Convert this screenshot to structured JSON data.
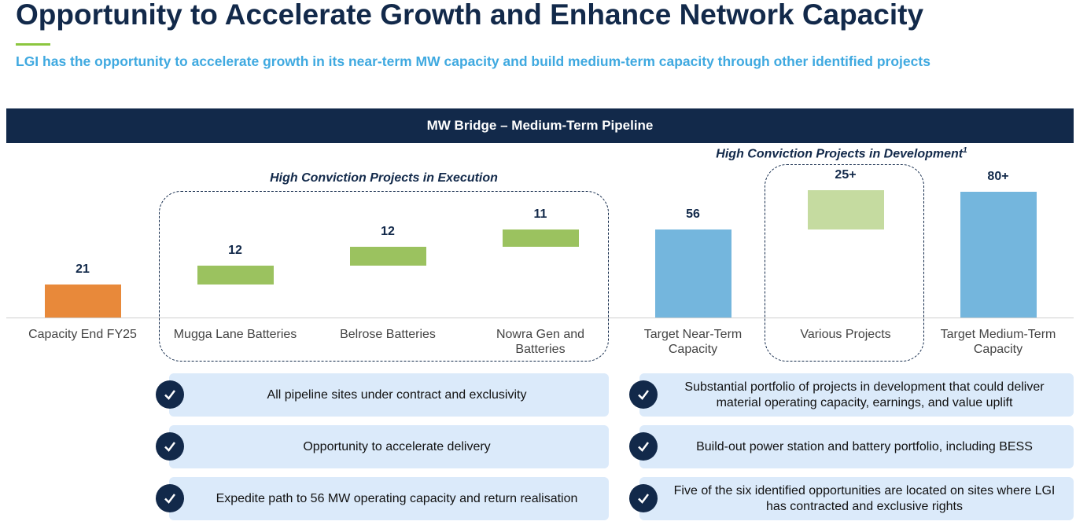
{
  "title": "Opportunity to Accelerate Growth and Enhance Network Capacity",
  "subtitle": "LGI has the opportunity to accelerate growth in its near-term MW capacity and build medium-term capacity through other identified projects",
  "chart_data": {
    "type": "waterfall",
    "title": "MW Bridge – Medium-Term Pipeline",
    "categories": [
      "Capacity End FY25",
      "Mugga Lane Batteries",
      "Belrose Batteries",
      "Nowra Gen and Batteries",
      "Target Near-Term Capacity",
      "Various Projects",
      "Target Medium-Term Capacity"
    ],
    "values": [
      21,
      12,
      12,
      11,
      56,
      25,
      80
    ],
    "value_labels": [
      "21",
      "12",
      "12",
      "11",
      "56",
      "25+",
      "80+"
    ],
    "measure": [
      "absolute",
      "relative",
      "relative",
      "relative",
      "total",
      "relative",
      "total"
    ],
    "colors": [
      "#e8893a",
      "#9bc25f",
      "#9bc25f",
      "#9bc25f",
      "#74b6dd",
      "#c5dba0",
      "#74b6dd"
    ],
    "annotations": [
      {
        "text": "High Conviction Projects in Execution"
      },
      {
        "text": "High Conviction Projects in Development",
        "footnote": "1"
      }
    ]
  },
  "left_points": [
    "All pipeline sites under contract and exclusivity",
    "Opportunity to accelerate delivery",
    "Expedite path to 56 MW operating capacity and return realisation"
  ],
  "right_points": [
    "Substantial portfolio of projects in development that could deliver material operating capacity, earnings, and value uplift",
    "Build-out power station and battery portfolio, including BESS",
    "Five of the six identified opportunities are located on sites where LGI has contracted and exclusive rights"
  ]
}
